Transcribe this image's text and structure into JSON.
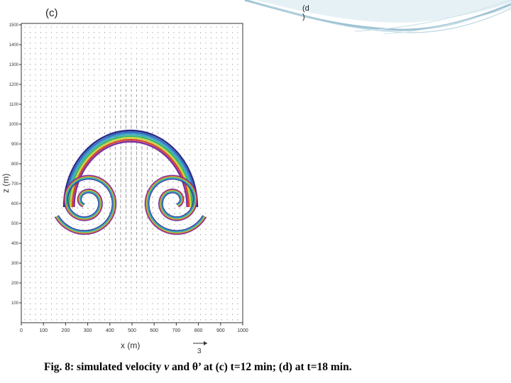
{
  "panels": {
    "c_label": "(c)",
    "d_label_line1": "(d",
    "d_label_line2": ")"
  },
  "axes": {
    "xlabel": "x (m)",
    "zlabel": "z (m)",
    "x_ticks": [
      "0",
      "100",
      "200",
      "300",
      "400",
      "500",
      "600",
      "700",
      "800",
      "900",
      "1000"
    ],
    "z_ticks": [
      "1500",
      "1400",
      "1300",
      "1200",
      "1100",
      "1000",
      "900",
      "800",
      "700",
      "600",
      "500",
      "400",
      "300",
      "200",
      "100"
    ],
    "vector_scale_label": "3"
  },
  "caption": {
    "prefix": "Fig. 8: simulated velocity ",
    "v": "v",
    "mid": " and ",
    "theta": "θ’",
    "suffix": " at  (c)  t=12 min; (d) at t=18 min."
  },
  "colors": {
    "deco_main": "#9ec3d3",
    "deco_light": "#cfe4ec",
    "vector": "#555555",
    "contours": [
      "#2a2a88",
      "#2f6fbf",
      "#3ca6c8",
      "#3cb46a",
      "#c9d23a",
      "#d8402d",
      "#7a2fa0"
    ]
  }
}
